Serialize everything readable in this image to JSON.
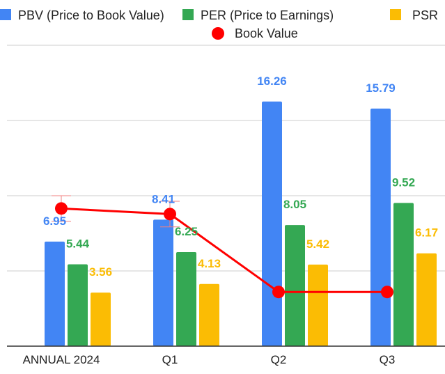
{
  "chart_data": {
    "type": "bar",
    "title": "",
    "xlabel": "",
    "ylabel": "",
    "ylim": [
      0,
      20
    ],
    "grid": true,
    "legend_position": "top",
    "categories": [
      "ANNUAL 2024",
      "Q1",
      "Q2",
      "Q3"
    ],
    "series": [
      {
        "name": "PBV (Price to Book Value)",
        "color": "#4285f4",
        "values": [
          6.95,
          8.41,
          16.26,
          15.79
        ]
      },
      {
        "name": "PER (Price to Earnings)",
        "color": "#34a853",
        "values": [
          5.44,
          6.25,
          8.05,
          9.52
        ]
      },
      {
        "name": "PSR",
        "color": "#fbbc04",
        "values": [
          3.56,
          4.13,
          5.42,
          6.17
        ]
      }
    ],
    "line_series": {
      "name": "Book Value",
      "type": "line",
      "color": "#ff0000",
      "values": [
        9.15,
        8.78,
        3.6,
        3.6
      ],
      "error_bars": [
        0.85,
        0.85,
        null,
        null
      ]
    }
  }
}
